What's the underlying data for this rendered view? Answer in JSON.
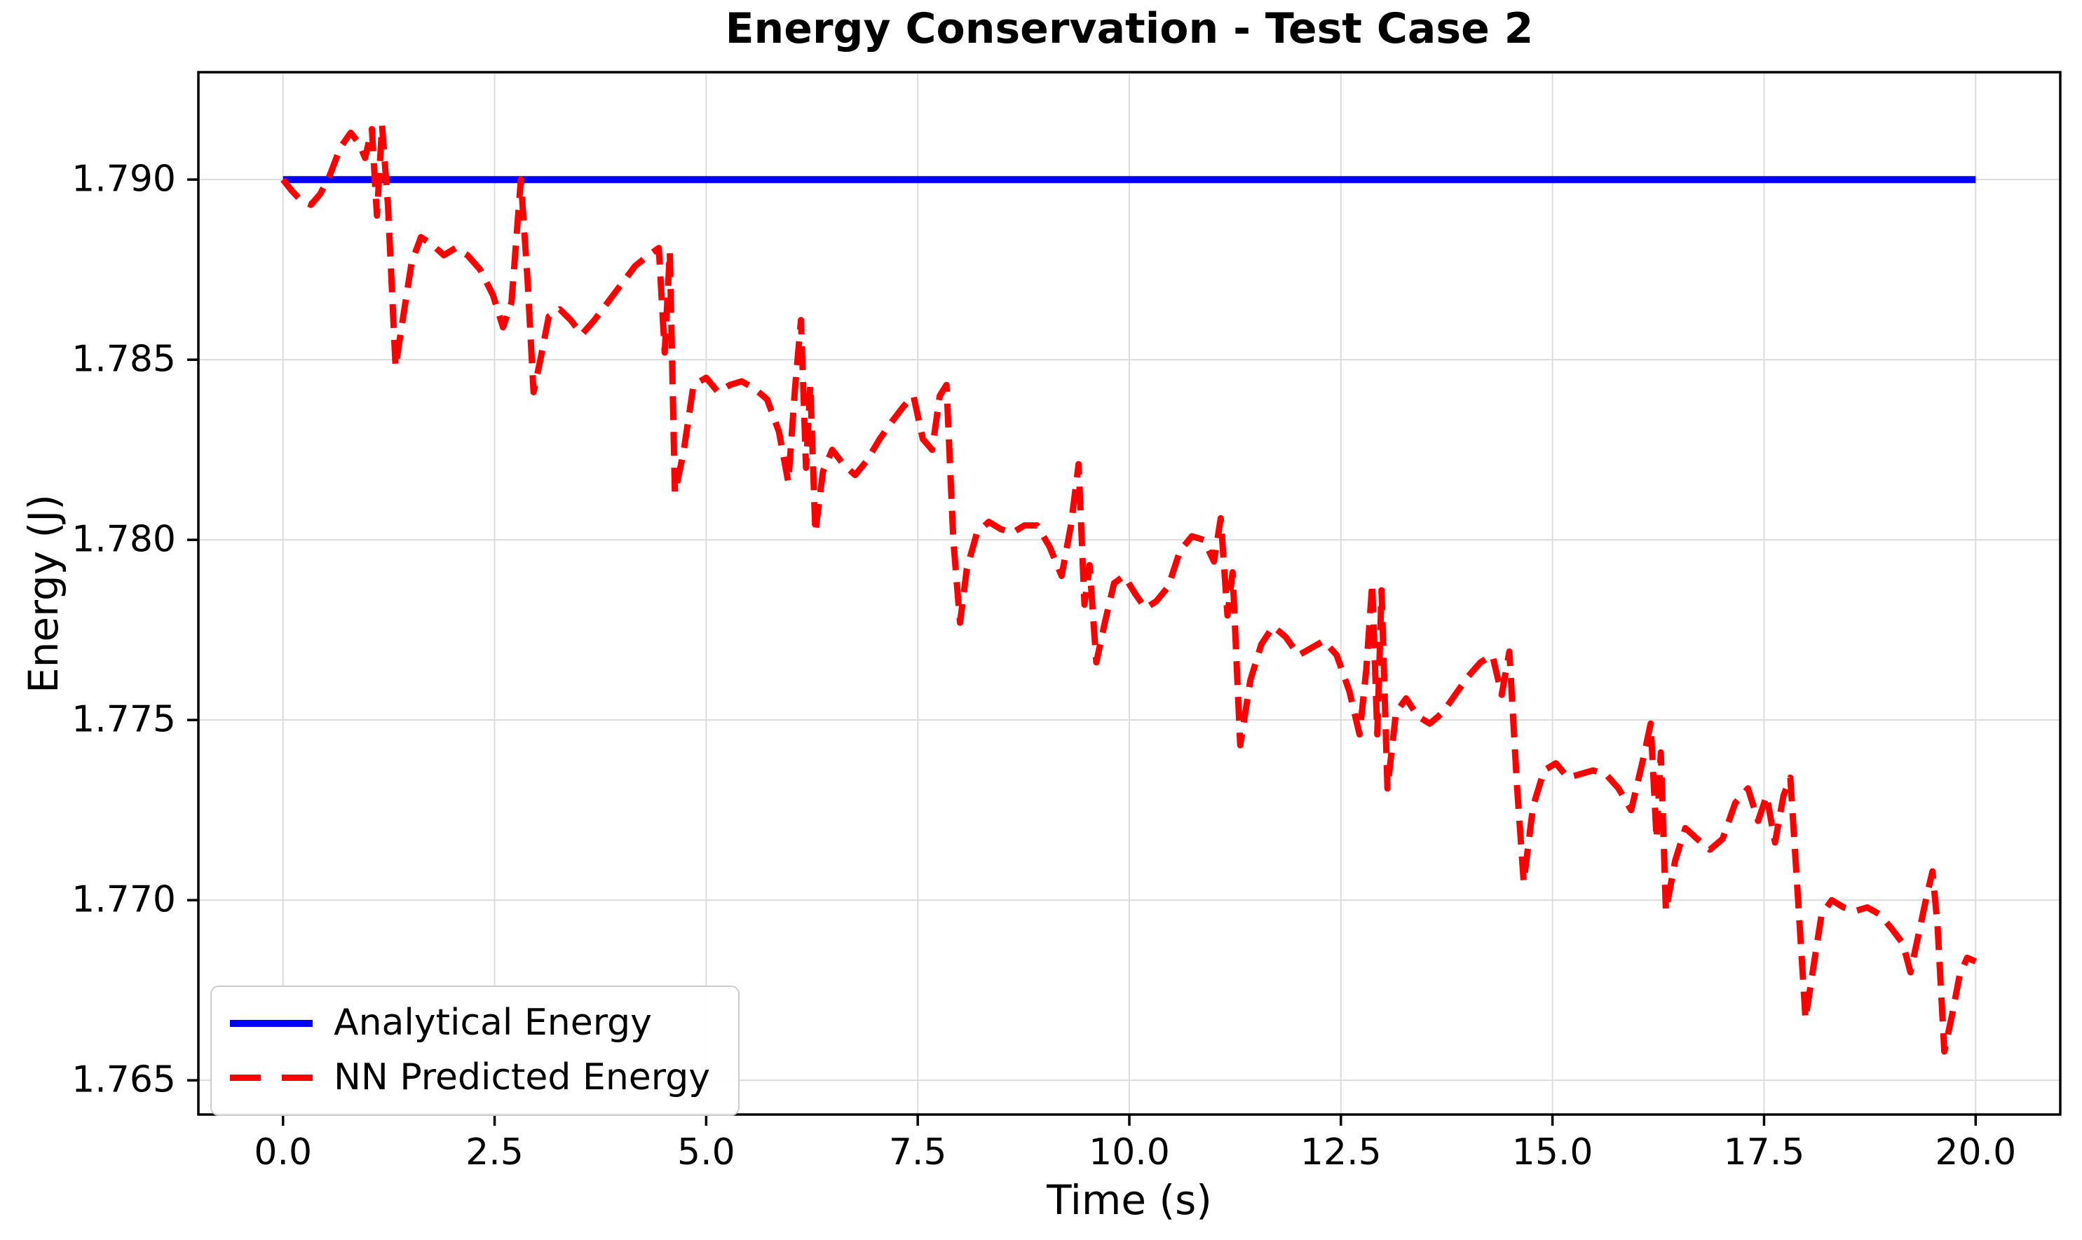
{
  "chart_data": {
    "type": "line",
    "title": "Energy Conservation - Test Case 2",
    "xlabel": "Time (s)",
    "ylabel": "Energy (J)",
    "x_domain": [
      -1,
      21
    ],
    "y_domain": [
      1.76405,
      1.79298
    ],
    "grid": true,
    "grid_color": "#dcdcdc",
    "spine_color": "#000000",
    "legend_position": "lower left",
    "xticks": {
      "values": [
        0,
        2.5,
        5,
        7.5,
        10,
        12.5,
        15,
        17.5,
        20
      ],
      "labels": [
        "0.0",
        "2.5",
        "5.0",
        "7.5",
        "10.0",
        "12.5",
        "15.0",
        "17.5",
        "20.0"
      ]
    },
    "yticks": {
      "values": [
        1.765,
        1.77,
        1.775,
        1.78,
        1.785,
        1.79
      ],
      "labels": [
        "1.765",
        "1.770",
        "1.775",
        "1.780",
        "1.785",
        "1.790"
      ]
    },
    "series": [
      {
        "name": "Analytical Energy",
        "color": "#0000ff",
        "style": "solid",
        "width": 10,
        "x": [
          0,
          20
        ],
        "y": [
          1.79,
          1.79
        ]
      },
      {
        "name": "NN Predicted Energy",
        "color": "#ff0000",
        "style": "dashed",
        "dash": [
          34,
          17
        ],
        "width": 9,
        "x": [
          0.0,
          0.1,
          0.22,
          0.33,
          0.44,
          0.55,
          0.68,
          0.8,
          0.9,
          0.97,
          1.05,
          1.11,
          1.17,
          1.24,
          1.33,
          1.42,
          1.52,
          1.63,
          1.76,
          1.9,
          2.04,
          2.18,
          2.33,
          2.48,
          2.6,
          2.7,
          2.81,
          2.89,
          2.96,
          3.05,
          3.14,
          3.27,
          3.4,
          3.53,
          3.68,
          3.84,
          4.0,
          4.16,
          4.32,
          4.44,
          4.51,
          4.57,
          4.63,
          4.73,
          4.85,
          5.0,
          5.14,
          5.28,
          5.42,
          5.57,
          5.72,
          5.86,
          5.97,
          6.05,
          6.12,
          6.18,
          6.23,
          6.29,
          6.38,
          6.49,
          6.62,
          6.76,
          6.9,
          7.05,
          7.2,
          7.33,
          7.45,
          7.56,
          7.67,
          7.76,
          7.84,
          7.92,
          8.0,
          8.08,
          8.2,
          8.34,
          8.48,
          8.62,
          8.76,
          8.91,
          9.06,
          9.2,
          9.31,
          9.4,
          9.47,
          9.53,
          9.61,
          9.71,
          9.82,
          9.94,
          10.07,
          10.19,
          10.32,
          10.46,
          10.6,
          10.74,
          10.88,
          11.0,
          11.08,
          11.16,
          11.22,
          11.31,
          11.43,
          11.56,
          11.7,
          11.85,
          12.0,
          12.15,
          12.3,
          12.45,
          12.6,
          12.72,
          12.8,
          12.87,
          12.93,
          12.98,
          13.05,
          13.15,
          13.27,
          13.41,
          13.55,
          13.7,
          13.85,
          14.0,
          14.15,
          14.29,
          14.4,
          14.49,
          14.58,
          14.66,
          14.77,
          14.9,
          15.04,
          15.18,
          15.33,
          15.48,
          15.63,
          15.78,
          15.93,
          16.07,
          16.16,
          16.23,
          16.28,
          16.34,
          16.45,
          16.57,
          16.71,
          16.86,
          17.01,
          17.16,
          17.31,
          17.43,
          17.53,
          17.63,
          17.73,
          17.81,
          17.9,
          17.99,
          18.08,
          18.18,
          18.3,
          18.44,
          18.58,
          18.72,
          18.87,
          19.01,
          19.14,
          19.23,
          19.33,
          19.42,
          19.49,
          19.55,
          19.63,
          19.72,
          19.81,
          19.9,
          20.0
        ],
        "y": [
          1.79,
          1.7897,
          1.7894,
          1.7893,
          1.7896,
          1.7901,
          1.7909,
          1.7913,
          1.791,
          1.7906,
          1.7914,
          1.789,
          1.7915,
          1.7893,
          1.7848,
          1.7862,
          1.7877,
          1.7884,
          1.7882,
          1.7879,
          1.7881,
          1.7879,
          1.7875,
          1.7868,
          1.7859,
          1.7866,
          1.79,
          1.7872,
          1.7841,
          1.7851,
          1.7862,
          1.7864,
          1.7861,
          1.7857,
          1.7861,
          1.7866,
          1.7871,
          1.7876,
          1.7879,
          1.7881,
          1.7852,
          1.788,
          1.7813,
          1.7824,
          1.7843,
          1.7845,
          1.7841,
          1.7843,
          1.7844,
          1.7842,
          1.7839,
          1.783,
          1.7816,
          1.7842,
          1.7861,
          1.782,
          1.7843,
          1.7802,
          1.7819,
          1.7825,
          1.7821,
          1.7818,
          1.7822,
          1.7828,
          1.7833,
          1.7837,
          1.784,
          1.7828,
          1.7825,
          1.784,
          1.7843,
          1.78,
          1.7777,
          1.7792,
          1.7802,
          1.7805,
          1.7803,
          1.7802,
          1.7804,
          1.7804,
          1.7798,
          1.779,
          1.7804,
          1.7821,
          1.7782,
          1.7793,
          1.7766,
          1.7777,
          1.7788,
          1.779,
          1.7785,
          1.7781,
          1.7783,
          1.7787,
          1.7797,
          1.7801,
          1.78,
          1.7794,
          1.7806,
          1.7779,
          1.7791,
          1.7743,
          1.7761,
          1.7771,
          1.7776,
          1.7773,
          1.7768,
          1.777,
          1.7772,
          1.7768,
          1.7758,
          1.7746,
          1.7764,
          1.7788,
          1.7746,
          1.7786,
          1.7731,
          1.7752,
          1.7756,
          1.7751,
          1.7749,
          1.7752,
          1.7757,
          1.7762,
          1.7766,
          1.7768,
          1.7757,
          1.7769,
          1.7732,
          1.7705,
          1.7726,
          1.7736,
          1.7738,
          1.7734,
          1.7735,
          1.7736,
          1.7735,
          1.7731,
          1.7725,
          1.7739,
          1.7749,
          1.7717,
          1.7741,
          1.7697,
          1.7711,
          1.772,
          1.7717,
          1.7714,
          1.7717,
          1.7727,
          1.7731,
          1.7722,
          1.7729,
          1.7716,
          1.7729,
          1.7734,
          1.7701,
          1.7667,
          1.7681,
          1.7696,
          1.77,
          1.7698,
          1.7697,
          1.7698,
          1.7696,
          1.7692,
          1.7688,
          1.768,
          1.7691,
          1.7701,
          1.7708,
          1.7693,
          1.7658,
          1.7668,
          1.7679,
          1.7684,
          1.7683
        ]
      }
    ]
  }
}
